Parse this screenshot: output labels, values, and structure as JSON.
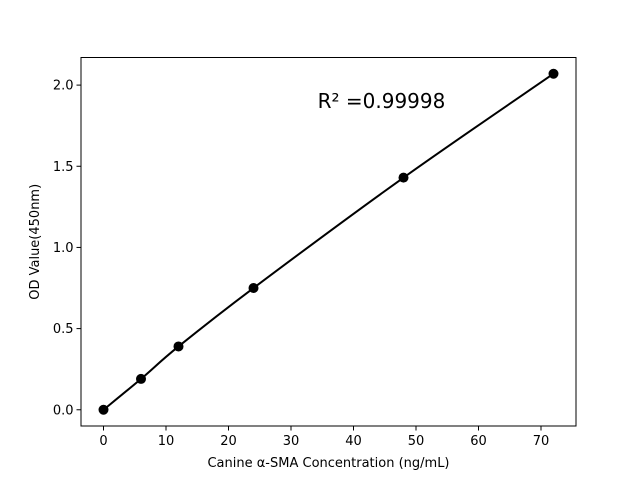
{
  "chart_data": {
    "type": "line",
    "title": "",
    "xlabel": "Canine α-SMA Concentration (ng/mL)",
    "ylabel": "OD Value(450nm)",
    "x": [
      0,
      6,
      12,
      24,
      48,
      72
    ],
    "y": [
      0.0,
      0.19,
      0.39,
      0.75,
      1.43,
      2.07
    ],
    "xtick_labels": [
      "0",
      "10",
      "20",
      "30",
      "40",
      "50",
      "60",
      "70"
    ],
    "ytick_labels": [
      "0.0",
      "0.5",
      "1.0",
      "1.5",
      "2.0"
    ],
    "xlim": [
      -3.6,
      75.6
    ],
    "ylim": [
      -0.1,
      2.17
    ],
    "grid": false,
    "legend": null,
    "annotation": {
      "text": "R² =0.99998",
      "x": 44.5,
      "y": 1.86
    },
    "line_color": "#000000",
    "marker_color": "#000000",
    "marker": "circle",
    "background_color": "#ffffff"
  }
}
